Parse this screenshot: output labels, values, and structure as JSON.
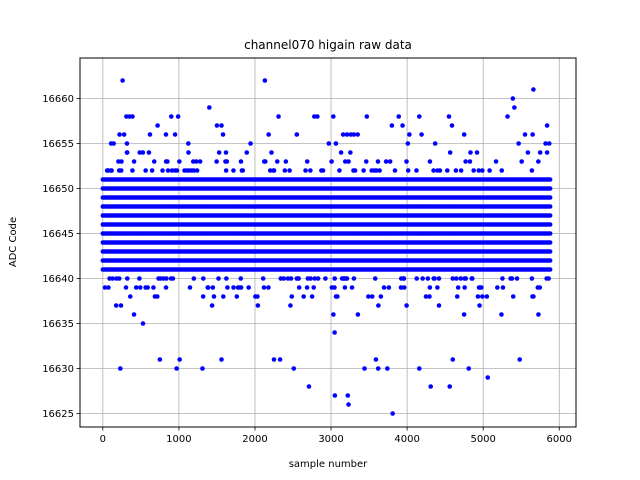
{
  "chart_data": {
    "type": "scatter",
    "title": "channel070 higain raw data",
    "xlabel": "sample number",
    "ylabel": "ADC Code",
    "xlim": [
      -300,
      6220
    ],
    "ylim": [
      16623.5,
      16664.5
    ],
    "xticks": [
      0,
      1000,
      2000,
      3000,
      4000,
      5000,
      6000
    ],
    "yticks": [
      16625,
      16630,
      16635,
      16640,
      16645,
      16650,
      16655,
      16660
    ],
    "grid": true,
    "marker_color": "#0000ff",
    "n_samples": 5900,
    "sample_spacing": 20,
    "code_range": [
      16625,
      16662
    ],
    "core_band": [
      16641,
      16651
    ],
    "points": [
      {
        "x": 260,
        "y": 16662
      },
      {
        "x": 2130,
        "y": 16662
      },
      {
        "x": 5660,
        "y": 16661
      },
      {
        "x": 5390,
        "y": 16660
      },
      {
        "x": 1400,
        "y": 16659
      },
      {
        "x": 5410,
        "y": 16659
      },
      {
        "x": 310,
        "y": 16658
      },
      {
        "x": 350,
        "y": 16658
      },
      {
        "x": 390,
        "y": 16658
      },
      {
        "x": 900,
        "y": 16658
      },
      {
        "x": 990,
        "y": 16658
      },
      {
        "x": 2310,
        "y": 16658
      },
      {
        "x": 2780,
        "y": 16658
      },
      {
        "x": 2820,
        "y": 16658
      },
      {
        "x": 3030,
        "y": 16658
      },
      {
        "x": 3470,
        "y": 16658
      },
      {
        "x": 3890,
        "y": 16658
      },
      {
        "x": 4160,
        "y": 16658
      },
      {
        "x": 4550,
        "y": 16658
      },
      {
        "x": 5320,
        "y": 16658
      },
      {
        "x": 5840,
        "y": 16657
      },
      {
        "x": 1500,
        "y": 16657
      },
      {
        "x": 1560,
        "y": 16657
      },
      {
        "x": 720,
        "y": 16657
      },
      {
        "x": 3800,
        "y": 16657
      },
      {
        "x": 3940,
        "y": 16657
      },
      {
        "x": 4590,
        "y": 16657
      },
      {
        "x": 220,
        "y": 16656
      },
      {
        "x": 280,
        "y": 16656
      },
      {
        "x": 620,
        "y": 16656
      },
      {
        "x": 830,
        "y": 16656
      },
      {
        "x": 950,
        "y": 16656
      },
      {
        "x": 1580,
        "y": 16656
      },
      {
        "x": 2180,
        "y": 16656
      },
      {
        "x": 2550,
        "y": 16656
      },
      {
        "x": 3160,
        "y": 16656
      },
      {
        "x": 3210,
        "y": 16656
      },
      {
        "x": 3260,
        "y": 16656
      },
      {
        "x": 3300,
        "y": 16656
      },
      {
        "x": 3350,
        "y": 16656
      },
      {
        "x": 4030,
        "y": 16656
      },
      {
        "x": 4190,
        "y": 16656
      },
      {
        "x": 4750,
        "y": 16656
      },
      {
        "x": 5550,
        "y": 16656
      },
      {
        "x": 5650,
        "y": 16656
      },
      {
        "x": 3050,
        "y": 16627
      },
      {
        "x": 3220,
        "y": 16627
      },
      {
        "x": 3230,
        "y": 16626
      },
      {
        "x": 3810,
        "y": 16625
      },
      {
        "x": 2710,
        "y": 16628
      },
      {
        "x": 4310,
        "y": 16628
      },
      {
        "x": 4560,
        "y": 16628
      },
      {
        "x": 5060,
        "y": 16629
      },
      {
        "x": 230,
        "y": 16630
      },
      {
        "x": 970,
        "y": 16630
      },
      {
        "x": 1310,
        "y": 16630
      },
      {
        "x": 2510,
        "y": 16630
      },
      {
        "x": 3440,
        "y": 16630
      },
      {
        "x": 3620,
        "y": 16630
      },
      {
        "x": 3740,
        "y": 16630
      },
      {
        "x": 4810,
        "y": 16630
      },
      {
        "x": 4160,
        "y": 16630
      },
      {
        "x": 3590,
        "y": 16631
      },
      {
        "x": 1010,
        "y": 16631
      },
      {
        "x": 750,
        "y": 16631
      },
      {
        "x": 1560,
        "y": 16631
      },
      {
        "x": 2250,
        "y": 16631
      },
      {
        "x": 2330,
        "y": 16631
      },
      {
        "x": 4600,
        "y": 16631
      },
      {
        "x": 5480,
        "y": 16631
      }
    ]
  }
}
